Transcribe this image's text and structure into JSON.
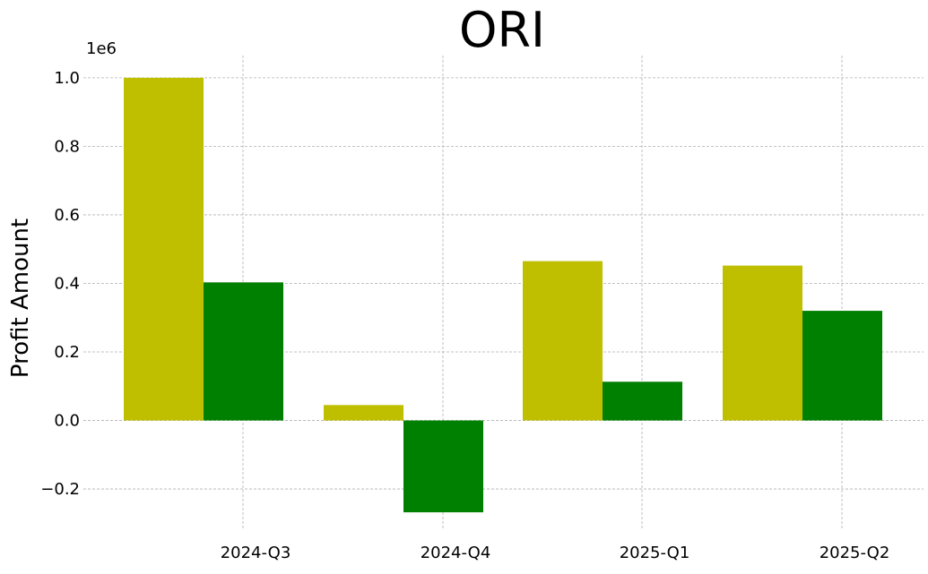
{
  "chart_data": {
    "type": "bar",
    "title": "ORI",
    "xlabel": "",
    "ylabel": "Profit Amount",
    "y_offset_label": "1e6",
    "categories": [
      "2024-Q3",
      "2024-Q4",
      "2025-Q1",
      "2025-Q2"
    ],
    "series": [
      {
        "values": [
          1000000,
          45000,
          465000,
          452000
        ],
        "color": "#bfbf00"
      },
      {
        "values": [
          403000,
          -268000,
          113000,
          320000
        ],
        "color": "#008000"
      }
    ],
    "ylim": [
      -0.32,
      1.065
    ],
    "y_ticks": [
      -0.2,
      0.0,
      0.2,
      0.4,
      0.6,
      0.8,
      1.0
    ],
    "y_tick_labels": [
      "−0.2",
      "0.0",
      "0.2",
      "0.4",
      "0.6",
      "0.8",
      "1.0"
    ],
    "grid": true,
    "legend": "none"
  }
}
